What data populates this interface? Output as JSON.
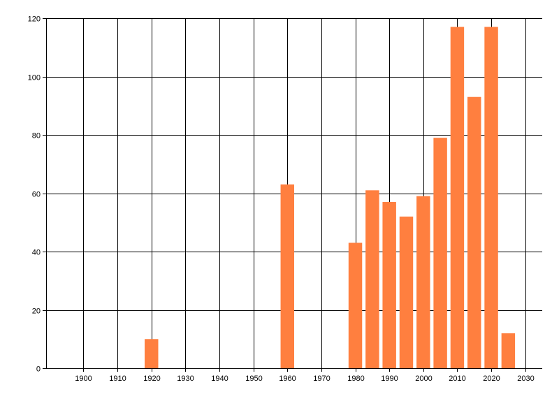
{
  "chart_data": {
    "type": "bar",
    "title": "",
    "xlabel": "",
    "ylabel": "",
    "xlim": [
      1889,
      2035
    ],
    "ylim": [
      0,
      120
    ],
    "x_ticks": [
      1900,
      1910,
      1920,
      1930,
      1940,
      1950,
      1960,
      1970,
      1980,
      1990,
      2000,
      2010,
      2020,
      2030
    ],
    "y_ticks": [
      0,
      20,
      40,
      60,
      80,
      100,
      120
    ],
    "bar_width_years": 4,
    "grid": true,
    "legend": "none",
    "bar_color": "#FF7F3F",
    "x": [
      1920,
      1960,
      1980,
      1985,
      1990,
      1995,
      2000,
      2005,
      2010,
      2015,
      2020,
      2025
    ],
    "values": [
      10,
      63,
      43,
      61,
      57,
      52,
      59,
      79,
      117,
      93,
      117,
      12
    ]
  }
}
